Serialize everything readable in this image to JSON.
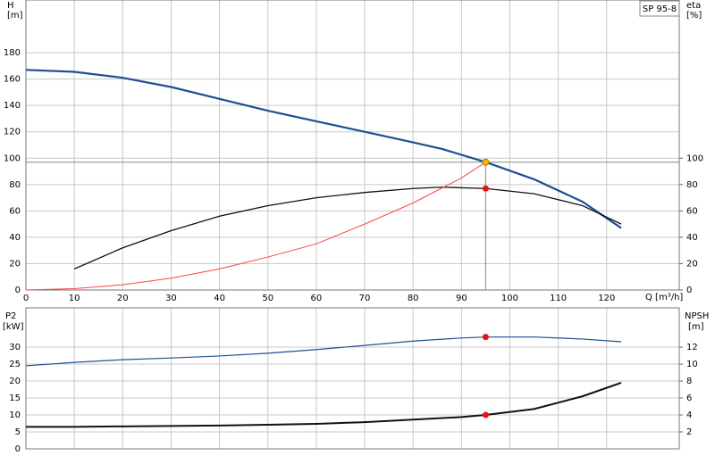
{
  "chart_data": [
    {
      "type": "line",
      "model_label": "SP 95-8",
      "y_label": "H",
      "y_unit": "[m]",
      "y2_label": "eta",
      "y2_unit": "[%]",
      "x_label": "Q [m³/h]",
      "xlim": [
        0,
        135
      ],
      "xticks": [
        0,
        10,
        20,
        30,
        40,
        50,
        60,
        70,
        80,
        90,
        100,
        110,
        120
      ],
      "ylim": [
        0,
        220
      ],
      "yticks": [
        0,
        20,
        40,
        60,
        80,
        100,
        120,
        140,
        160,
        180
      ],
      "y2lim": [
        0,
        220
      ],
      "y2ticks": [
        0,
        20,
        40,
        60,
        80,
        100
      ],
      "grid": true,
      "series": [
        {
          "color": "#1f4e96",
          "width": 2.2,
          "x": [
            0,
            10,
            20,
            30,
            40,
            50,
            60,
            70,
            80,
            86,
            95,
            105,
            115,
            123
          ],
          "values": [
            167,
            165.5,
            161,
            154,
            145,
            136,
            128,
            120,
            112,
            107,
            97,
            84,
            67,
            47
          ]
        },
        {
          "color": "#111111",
          "width": 1.3,
          "axis": "y2",
          "x": [
            10,
            20,
            30,
            40,
            50,
            60,
            70,
            80,
            86,
            95,
            105,
            115,
            123
          ],
          "values": [
            16,
            32,
            45,
            56,
            64,
            70,
            74,
            77,
            78,
            77,
            73,
            64,
            50
          ]
        },
        {
          "color": "#ff4444",
          "width": 1,
          "x": [
            0,
            10,
            20,
            30,
            40,
            50,
            60,
            70,
            80,
            90,
            95
          ],
          "values": [
            0,
            1,
            4,
            9,
            16,
            25,
            35,
            50,
            66,
            85,
            97
          ]
        }
      ],
      "hlines": [
        97
      ],
      "vlines": [
        95
      ],
      "points": [
        {
          "x": 95,
          "y": 97,
          "color": "#f5b800"
        },
        {
          "x": 95,
          "y": 77,
          "color": "#ee1111",
          "axis": "y2"
        }
      ]
    },
    {
      "type": "line",
      "y_label": "P2",
      "y_unit": "[kW]",
      "y2_label": "NPSH",
      "y2_unit": "[m]",
      "xlim": [
        0,
        135
      ],
      "xticks": [
        0,
        10,
        20,
        30,
        40,
        50,
        60,
        70,
        80,
        90,
        100,
        110,
        120
      ],
      "ylim": [
        0,
        41.6
      ],
      "yticks": [
        0,
        5,
        10,
        15,
        20,
        25,
        30
      ],
      "y2lim": [
        0,
        16.64
      ],
      "y2ticks": [
        2,
        4,
        6,
        8,
        10,
        12
      ],
      "grid": true,
      "series": [
        {
          "color": "#1f4e96",
          "width": 1.2,
          "x": [
            0,
            10,
            20,
            30,
            40,
            50,
            60,
            70,
            80,
            90,
            95,
            105,
            115,
            123
          ],
          "values": [
            24.5,
            25.5,
            26.3,
            26.8,
            27.4,
            28.2,
            29.3,
            30.5,
            31.8,
            32.7,
            33,
            33,
            32.4,
            31.6
          ]
        },
        {
          "color": "#111111",
          "width": 2,
          "axis": "y2",
          "x": [
            0,
            10,
            20,
            30,
            40,
            50,
            60,
            70,
            80,
            90,
            95,
            105,
            115,
            123
          ],
          "values": [
            2.6,
            2.6,
            2.65,
            2.7,
            2.75,
            2.85,
            2.95,
            3.15,
            3.45,
            3.75,
            4.0,
            4.7,
            6.2,
            7.8
          ]
        }
      ],
      "points": [
        {
          "x": 95,
          "y": 33,
          "color": "#ee1111"
        },
        {
          "x": 95,
          "y": 4.0,
          "color": "#ee1111",
          "axis": "y2"
        }
      ]
    }
  ]
}
